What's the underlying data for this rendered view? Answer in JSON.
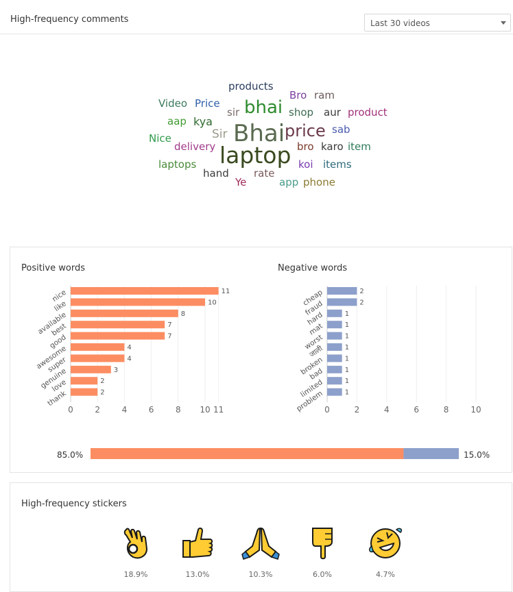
{
  "header": {
    "title": "High-frequency comments",
    "select_value": "Last 30 videos"
  },
  "wordcloud": [
    {
      "text": "products",
      "color": "#2a3d5c"
    },
    {
      "text": "Bro",
      "color": "#7b3fa0"
    },
    {
      "text": "ram",
      "color": "#6b5a5a"
    },
    {
      "text": "Video",
      "color": "#3b7a5c"
    },
    {
      "text": "Price",
      "color": "#2e5fa8"
    },
    {
      "text": "sir",
      "color": "#7a6a6a"
    },
    {
      "text": "bhai",
      "color": "#2e8b2e"
    },
    {
      "text": "shop",
      "color": "#3d6a50"
    },
    {
      "text": "aur",
      "color": "#3a3a3a"
    },
    {
      "text": "product",
      "color": "#a0307a"
    },
    {
      "text": "aap",
      "color": "#3f9a30"
    },
    {
      "text": "kya",
      "color": "#2e6a2e"
    },
    {
      "text": "Sir",
      "color": "#9a9a8a"
    },
    {
      "text": "Bhai",
      "color": "#5a6a50"
    },
    {
      "text": "price",
      "color": "#6a3a4a"
    },
    {
      "text": "sab",
      "color": "#4a5ab0"
    },
    {
      "text": "Nice",
      "color": "#2e9a4a"
    },
    {
      "text": "delivery",
      "color": "#a03a8a"
    },
    {
      "text": "bro",
      "color": "#7a3a2a"
    },
    {
      "text": "karo",
      "color": "#3a3a3a"
    },
    {
      "text": "item",
      "color": "#2e7a5a"
    },
    {
      "text": "laptop",
      "color": "#3a4a20"
    },
    {
      "text": "laptops",
      "color": "#4a8a3a"
    },
    {
      "text": "koi",
      "color": "#7a3ab0"
    },
    {
      "text": "items",
      "color": "#2e6a7a"
    },
    {
      "text": "hand",
      "color": "#3a3a3a"
    },
    {
      "text": "rate",
      "color": "#7a5a5a"
    },
    {
      "text": "Ye",
      "color": "#a02a5a"
    },
    {
      "text": "app",
      "color": "#4a9a8a"
    },
    {
      "text": "phone",
      "color": "#8a7a30"
    }
  ],
  "sentiment": {
    "positive_title": "Positive words",
    "negative_title": "Negative words",
    "positive_ratio_label": "85.0%",
    "negative_ratio_label": "15.0%",
    "positive_ratio": 0.85,
    "colors": {
      "positive": "#fc8d62",
      "negative": "#8da0cb"
    }
  },
  "chart_data": [
    {
      "type": "bar",
      "orientation": "horizontal",
      "title": "Positive words",
      "categories": [
        "nice",
        "like",
        "available",
        "best",
        "good",
        "awesome",
        "super",
        "genuine",
        "love",
        "thank"
      ],
      "values": [
        11,
        10,
        8,
        7,
        7,
        4,
        4,
        3,
        2,
        2
      ],
      "xlim": [
        0,
        11
      ],
      "xticks": [
        "0",
        "2",
        "4",
        "6",
        "8",
        "10",
        "11"
      ],
      "color": "#fc8d62"
    },
    {
      "type": "bar",
      "orientation": "horizontal",
      "title": "Negative words",
      "categories": [
        "cheap",
        "fraud",
        "hard",
        "mat",
        "worst",
        "जाली",
        "broken",
        "bad",
        "limited",
        "problem"
      ],
      "values": [
        2,
        2,
        1,
        1,
        1,
        1,
        1,
        1,
        1,
        1
      ],
      "xlim": [
        0,
        10
      ],
      "xticks": [
        "0",
        "2",
        "4",
        "6",
        "8",
        "10"
      ],
      "color": "#8da0cb"
    }
  ],
  "stickers": {
    "title": "High-frequency stickers",
    "items": [
      {
        "icon": "ok-hand-icon",
        "percent": "18.9%"
      },
      {
        "icon": "thumbs-up-icon",
        "percent": "13.0%"
      },
      {
        "icon": "folded-hands-icon",
        "percent": "10.3%"
      },
      {
        "icon": "pointing-down-icon",
        "percent": "6.0%"
      },
      {
        "icon": "rolling-laughing-icon",
        "percent": "4.7%"
      }
    ]
  }
}
